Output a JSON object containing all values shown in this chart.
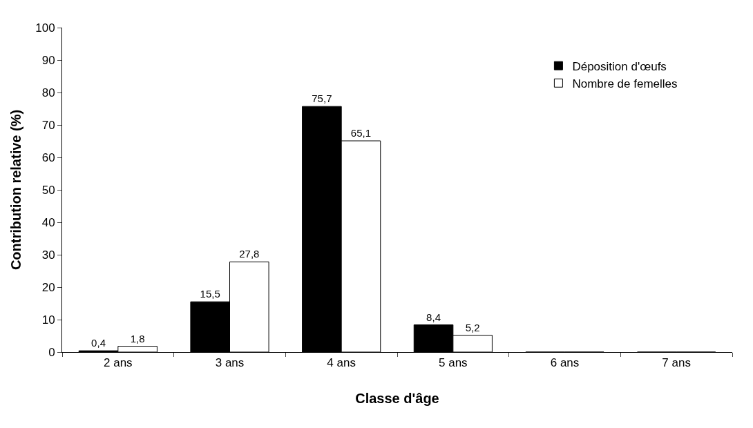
{
  "chart_data": {
    "type": "bar",
    "xlabel": "Classe d'âge",
    "ylabel": "Contribution relative (%)",
    "categories": [
      "2 ans",
      "3 ans",
      "4 ans",
      "5 ans",
      "6 ans",
      "7 ans"
    ],
    "series": [
      {
        "name": "Déposition d'œufs",
        "color": "#000000",
        "values": [
          0.4,
          15.5,
          75.7,
          8.4,
          0,
          0
        ],
        "value_labels": [
          "0,4",
          "15,5",
          "75,7",
          "8,4",
          null,
          null
        ]
      },
      {
        "name": "Nombre de femelles",
        "color": "#ffffff",
        "values": [
          1.8,
          27.8,
          65.1,
          5.2,
          0,
          0
        ],
        "value_labels": [
          "1,8",
          "27,8",
          "65,1",
          "5,2",
          null,
          null
        ]
      }
    ],
    "ylim": [
      0,
      100
    ],
    "yticks": [
      0,
      10,
      20,
      30,
      40,
      50,
      60,
      70,
      80,
      90,
      100
    ],
    "legend": "top right"
  }
}
